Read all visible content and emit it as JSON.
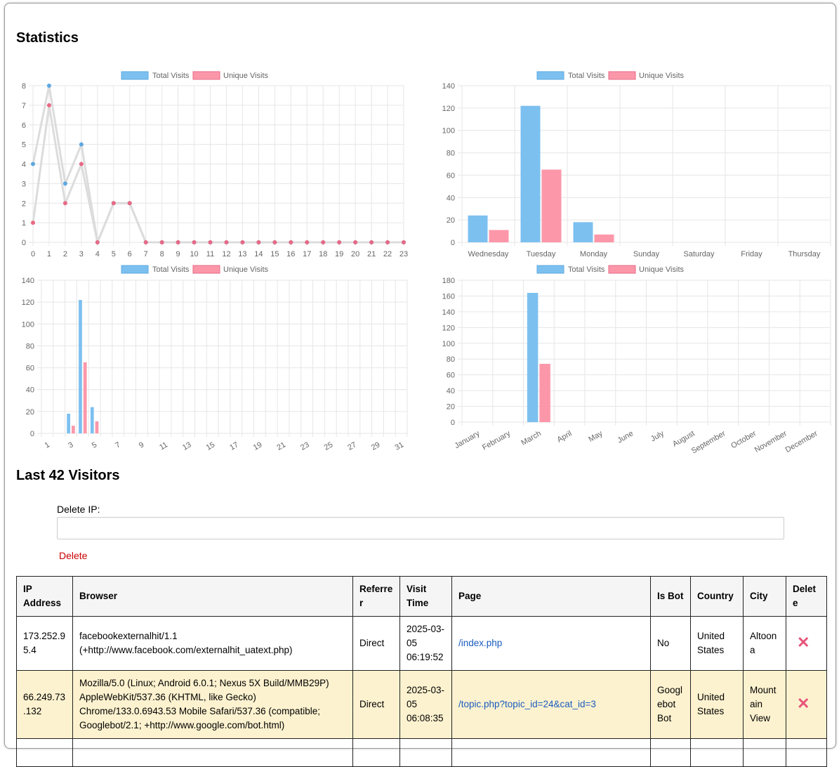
{
  "headings": {
    "statistics": "Statistics",
    "visitors": "Last 42 Visitors"
  },
  "colors": {
    "total": "#7cc0f0",
    "unique": "#fc97aa",
    "total_point": "#5ea8e0",
    "unique_point": "#e86a85",
    "line": "#dcdcdc",
    "grid": "#e6e6e6",
    "delete": "#cc0000",
    "link": "#1a5bbf",
    "bot_row": "#fdf2cf"
  },
  "legend": {
    "total": "Total Visits",
    "unique": "Unique Visits"
  },
  "chart_data": [
    {
      "type": "line",
      "title": "",
      "x": [
        "0",
        "1",
        "2",
        "3",
        "4",
        "5",
        "6",
        "7",
        "8",
        "9",
        "10",
        "11",
        "12",
        "13",
        "14",
        "15",
        "16",
        "17",
        "18",
        "19",
        "20",
        "21",
        "22",
        "23"
      ],
      "series": [
        {
          "name": "Total Visits",
          "values": [
            4,
            8,
            3,
            5,
            0,
            2,
            2,
            0,
            0,
            0,
            0,
            0,
            0,
            0,
            0,
            0,
            0,
            0,
            0,
            0,
            0,
            0,
            0,
            0
          ]
        },
        {
          "name": "Unique Visits",
          "values": [
            1,
            7,
            2,
            4,
            0,
            2,
            2,
            0,
            0,
            0,
            0,
            0,
            0,
            0,
            0,
            0,
            0,
            0,
            0,
            0,
            0,
            0,
            0,
            0
          ]
        }
      ],
      "ylim": [
        0,
        8
      ],
      "yticks": [
        0,
        1,
        2,
        3,
        4,
        5,
        6,
        7,
        8
      ],
      "grid": true,
      "legend_position": "top"
    },
    {
      "type": "bar",
      "title": "",
      "categories": [
        "Wednesday",
        "Tuesday",
        "Monday",
        "Sunday",
        "Saturday",
        "Friday",
        "Thursday"
      ],
      "series": [
        {
          "name": "Total Visits",
          "values": [
            24,
            122,
            18,
            0,
            0,
            0,
            0
          ]
        },
        {
          "name": "Unique Visits",
          "values": [
            11,
            65,
            7,
            0,
            0,
            0,
            0
          ]
        }
      ],
      "ylim": [
        0,
        140
      ],
      "yticks": [
        0,
        20,
        40,
        60,
        80,
        100,
        120,
        140
      ],
      "grid": true,
      "legend_position": "top"
    },
    {
      "type": "bar",
      "title": "",
      "categories": [
        "1",
        "2",
        "3",
        "4",
        "5",
        "6",
        "7",
        "8",
        "9",
        "10",
        "11",
        "12",
        "13",
        "14",
        "15",
        "16",
        "17",
        "18",
        "19",
        "20",
        "21",
        "22",
        "23",
        "24",
        "25",
        "26",
        "27",
        "28",
        "29",
        "30",
        "31"
      ],
      "tick_labels_shown": [
        "1",
        "3",
        "5",
        "7",
        "9",
        "11",
        "13",
        "15",
        "17",
        "19",
        "21",
        "23",
        "25",
        "27",
        "29",
        "31"
      ],
      "series": [
        {
          "name": "Total Visits",
          "values": [
            0,
            0,
            18,
            122,
            24,
            0,
            0,
            0,
            0,
            0,
            0,
            0,
            0,
            0,
            0,
            0,
            0,
            0,
            0,
            0,
            0,
            0,
            0,
            0,
            0,
            0,
            0,
            0,
            0,
            0,
            0
          ]
        },
        {
          "name": "Unique Visits",
          "values": [
            0,
            0,
            7,
            65,
            11,
            0,
            0,
            0,
            0,
            0,
            0,
            0,
            0,
            0,
            0,
            0,
            0,
            0,
            0,
            0,
            0,
            0,
            0,
            0,
            0,
            0,
            0,
            0,
            0,
            0,
            0
          ]
        }
      ],
      "ylim": [
        0,
        140
      ],
      "yticks": [
        0,
        20,
        40,
        60,
        80,
        100,
        120,
        140
      ],
      "grid": true,
      "legend_position": "top"
    },
    {
      "type": "bar",
      "title": "",
      "categories": [
        "January",
        "February",
        "March",
        "April",
        "May",
        "June",
        "July",
        "August",
        "September",
        "October",
        "November",
        "December"
      ],
      "series": [
        {
          "name": "Total Visits",
          "values": [
            0,
            0,
            164,
            0,
            0,
            0,
            0,
            0,
            0,
            0,
            0,
            0
          ]
        },
        {
          "name": "Unique Visits",
          "values": [
            0,
            0,
            74,
            0,
            0,
            0,
            0,
            0,
            0,
            0,
            0,
            0
          ]
        }
      ],
      "ylim": [
        0,
        180
      ],
      "yticks": [
        0,
        20,
        40,
        60,
        80,
        100,
        120,
        140,
        160,
        180
      ],
      "grid": true,
      "legend_position": "top"
    }
  ],
  "delete_form": {
    "label": "Delete IP:",
    "input_value": "",
    "button": "Delete"
  },
  "table": {
    "columns": [
      "IP Address",
      "Browser",
      "Referrer",
      "Visit Time",
      "Page",
      "Is Bot",
      "Country",
      "City",
      "Delete"
    ],
    "rows": [
      {
        "ip": "173.252.95.4",
        "browser": "facebookexternalhit/1.1 (+http://www.facebook.com/externalhit_uatext.php)",
        "referrer": "Direct",
        "time": "2025-03-05 06:19:52",
        "page": "/index.php",
        "is_bot": "No",
        "country": "United States",
        "city": "Altoona",
        "delete": "✕"
      },
      {
        "ip": "66.249.73.132",
        "browser": "Mozilla/5.0 (Linux; Android 6.0.1; Nexus 5X Build/MMB29P) AppleWebKit/537.36 (KHTML, like Gecko) Chrome/133.0.6943.53 Mobile Safari/537.36 (compatible; Googlebot/2.1; +http://www.google.com/bot.html)",
        "referrer": "Direct",
        "time": "2025-03-05 06:08:35",
        "page": "/topic.php?topic_id=24&cat_id=3",
        "is_bot": "Googlebot Bot",
        "country": "United States",
        "city": "Mountain View",
        "delete": "✕"
      },
      {
        "ip": "",
        "browser": "",
        "referrer": "",
        "time": "",
        "page": "",
        "is_bot": "",
        "country": "",
        "city": "",
        "delete": ""
      }
    ]
  }
}
